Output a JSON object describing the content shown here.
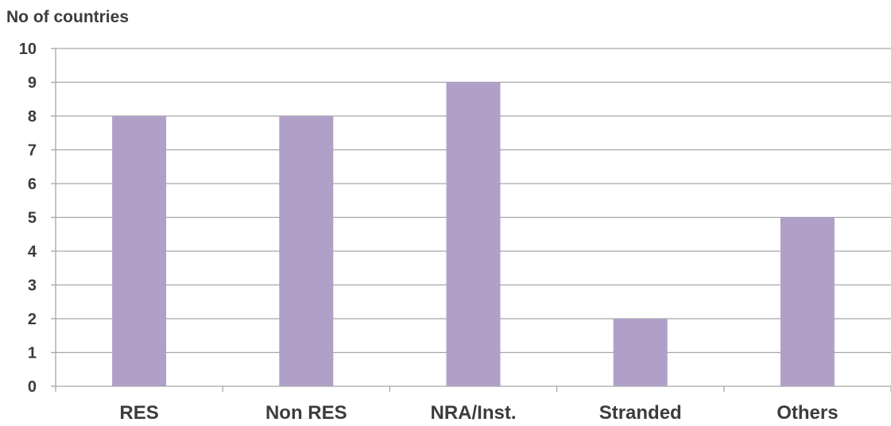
{
  "chart_data": {
    "type": "bar",
    "title": "",
    "xlabel": "",
    "ylabel": "No of countries",
    "categories": [
      "RES",
      "Non RES",
      "NRA/Inst.",
      "Stranded",
      "Others"
    ],
    "values": [
      8,
      8,
      9,
      2,
      5
    ],
    "ylim": [
      0,
      10
    ],
    "yticks": [
      0,
      1,
      2,
      3,
      4,
      5,
      6,
      7,
      8,
      9,
      10
    ],
    "grid": true,
    "legend": "none",
    "bar_color": "#b0a0c8",
    "grid_color": "#a6a6a6",
    "axis_color": "#a6a6a6",
    "text_color": "#3c3c3c"
  }
}
